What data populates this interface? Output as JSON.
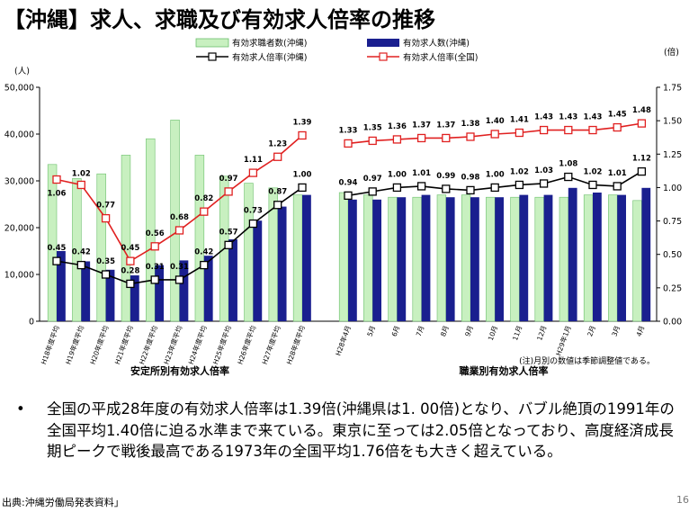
{
  "title": "【沖縄】求人、求職及び有効求人倍率の推移",
  "colors": {
    "job_seekers": "#c8f0c0",
    "job_seekers_border": "#6bbf6b",
    "job_offers": "#1a1f8f",
    "ratio_okinawa": "#000000",
    "ratio_national": "#e02020"
  },
  "chart_data": {
    "type": "bar",
    "legend": [
      "有効求職者数(沖縄)",
      "有効求人数(沖縄)",
      "有効求人倍率(沖縄)",
      "有効求人倍率(全国)"
    ],
    "y_left": {
      "unit": "(人)",
      "ticks": [
        "50,000",
        "40,000",
        "30,000",
        "20,000",
        "10,000",
        "0"
      ],
      "ylim": [
        0,
        50000
      ]
    },
    "y_right": {
      "unit": "(倍)",
      "ticks": [
        "1.75",
        "1.50",
        "1.25",
        "1.00",
        "0.75",
        "0.50",
        "0.25",
        "0.00"
      ],
      "ylim": [
        0,
        1.75
      ]
    },
    "group_labels": [
      "安定所別有効求人倍率",
      "職業別有効求人倍率"
    ],
    "note": "(注)月別の数値は季節調整値である。",
    "annual": {
      "categories": [
        "H18年度平均",
        "H19年度平均",
        "H20年度平均",
        "H21年度平均",
        "H22年度平均",
        "H23年度平均",
        "H24年度平均",
        "H25年度平均",
        "H26年度平均",
        "H27年度平均",
        "H28年度平均"
      ],
      "job_seekers": [
        33500,
        30500,
        31500,
        35500,
        39000,
        43000,
        35500,
        31000,
        29500,
        28500,
        27000
      ],
      "job_offers": [
        15000,
        12800,
        11000,
        9800,
        12000,
        13000,
        14000,
        17500,
        21500,
        24500,
        27000
      ],
      "ratio_okinawa": [
        0.45,
        0.42,
        0.35,
        0.28,
        0.31,
        0.31,
        0.42,
        0.57,
        0.73,
        0.87,
        1.0
      ],
      "ratio_national": [
        1.06,
        1.02,
        0.77,
        0.45,
        0.56,
        0.68,
        0.82,
        0.97,
        1.11,
        1.23,
        1.39
      ],
      "labels_okinawa": [
        "0.45",
        "0.42",
        "0.35",
        "0.28",
        "0.31",
        "0.31",
        "0.42",
        "0.57",
        "0.73",
        "0.87",
        "1.00"
      ],
      "labels_national": [
        "1.06",
        "1.02",
        "0.77",
        "0.45",
        "0.56",
        "0.68",
        "0.82",
        "0.97",
        "1.11",
        "1.23",
        "1.39"
      ]
    },
    "monthly": {
      "categories": [
        "H28年4月",
        "5月",
        "6月",
        "7月",
        "8月",
        "9月",
        "10月",
        "11月",
        "12月",
        "H29年1月",
        "2月",
        "3月",
        "4月"
      ],
      "job_seekers": [
        27500,
        27000,
        26500,
        26500,
        27000,
        27000,
        26500,
        26500,
        26500,
        26500,
        27000,
        27000,
        25800
      ],
      "job_offers": [
        26000,
        26000,
        26500,
        27000,
        26500,
        26500,
        26500,
        27000,
        27000,
        28500,
        27500,
        27000,
        28500
      ],
      "ratio_okinawa": [
        0.94,
        0.97,
        1.0,
        1.01,
        0.99,
        0.98,
        1.0,
        1.02,
        1.03,
        1.08,
        1.02,
        1.01,
        1.12
      ],
      "ratio_national": [
        1.33,
        1.35,
        1.36,
        1.37,
        1.37,
        1.38,
        1.4,
        1.41,
        1.43,
        1.43,
        1.43,
        1.45,
        1.48
      ],
      "labels_okinawa": [
        "0.94",
        "0.97",
        "1.00",
        "1.01",
        "0.99",
        "0.98",
        "1.00",
        "1.02",
        "1.03",
        "1.08",
        "1.02",
        "1.01",
        "1.12"
      ],
      "labels_national": [
        "1.33",
        "1.35",
        "1.36",
        "1.37",
        "1.37",
        "1.38",
        "1.40",
        "1.41",
        "1.43",
        "1.43",
        "1.43",
        "1.45",
        "1.48"
      ]
    }
  },
  "bullet": "全国の平成28年度の有効求人倍率は1.39倍(沖縄県は1. 00倍)となり、バブル絶頂の1991年の全国平均1.40倍に迫る水準まで来ている。東京に至っては2.05倍となっており、高度経済成長期ピークで戦後最高である1973年の全国平均1.76倍をも大きく超えている。",
  "source": "出典:沖縄労働局発表資料」",
  "page_number": "16"
}
